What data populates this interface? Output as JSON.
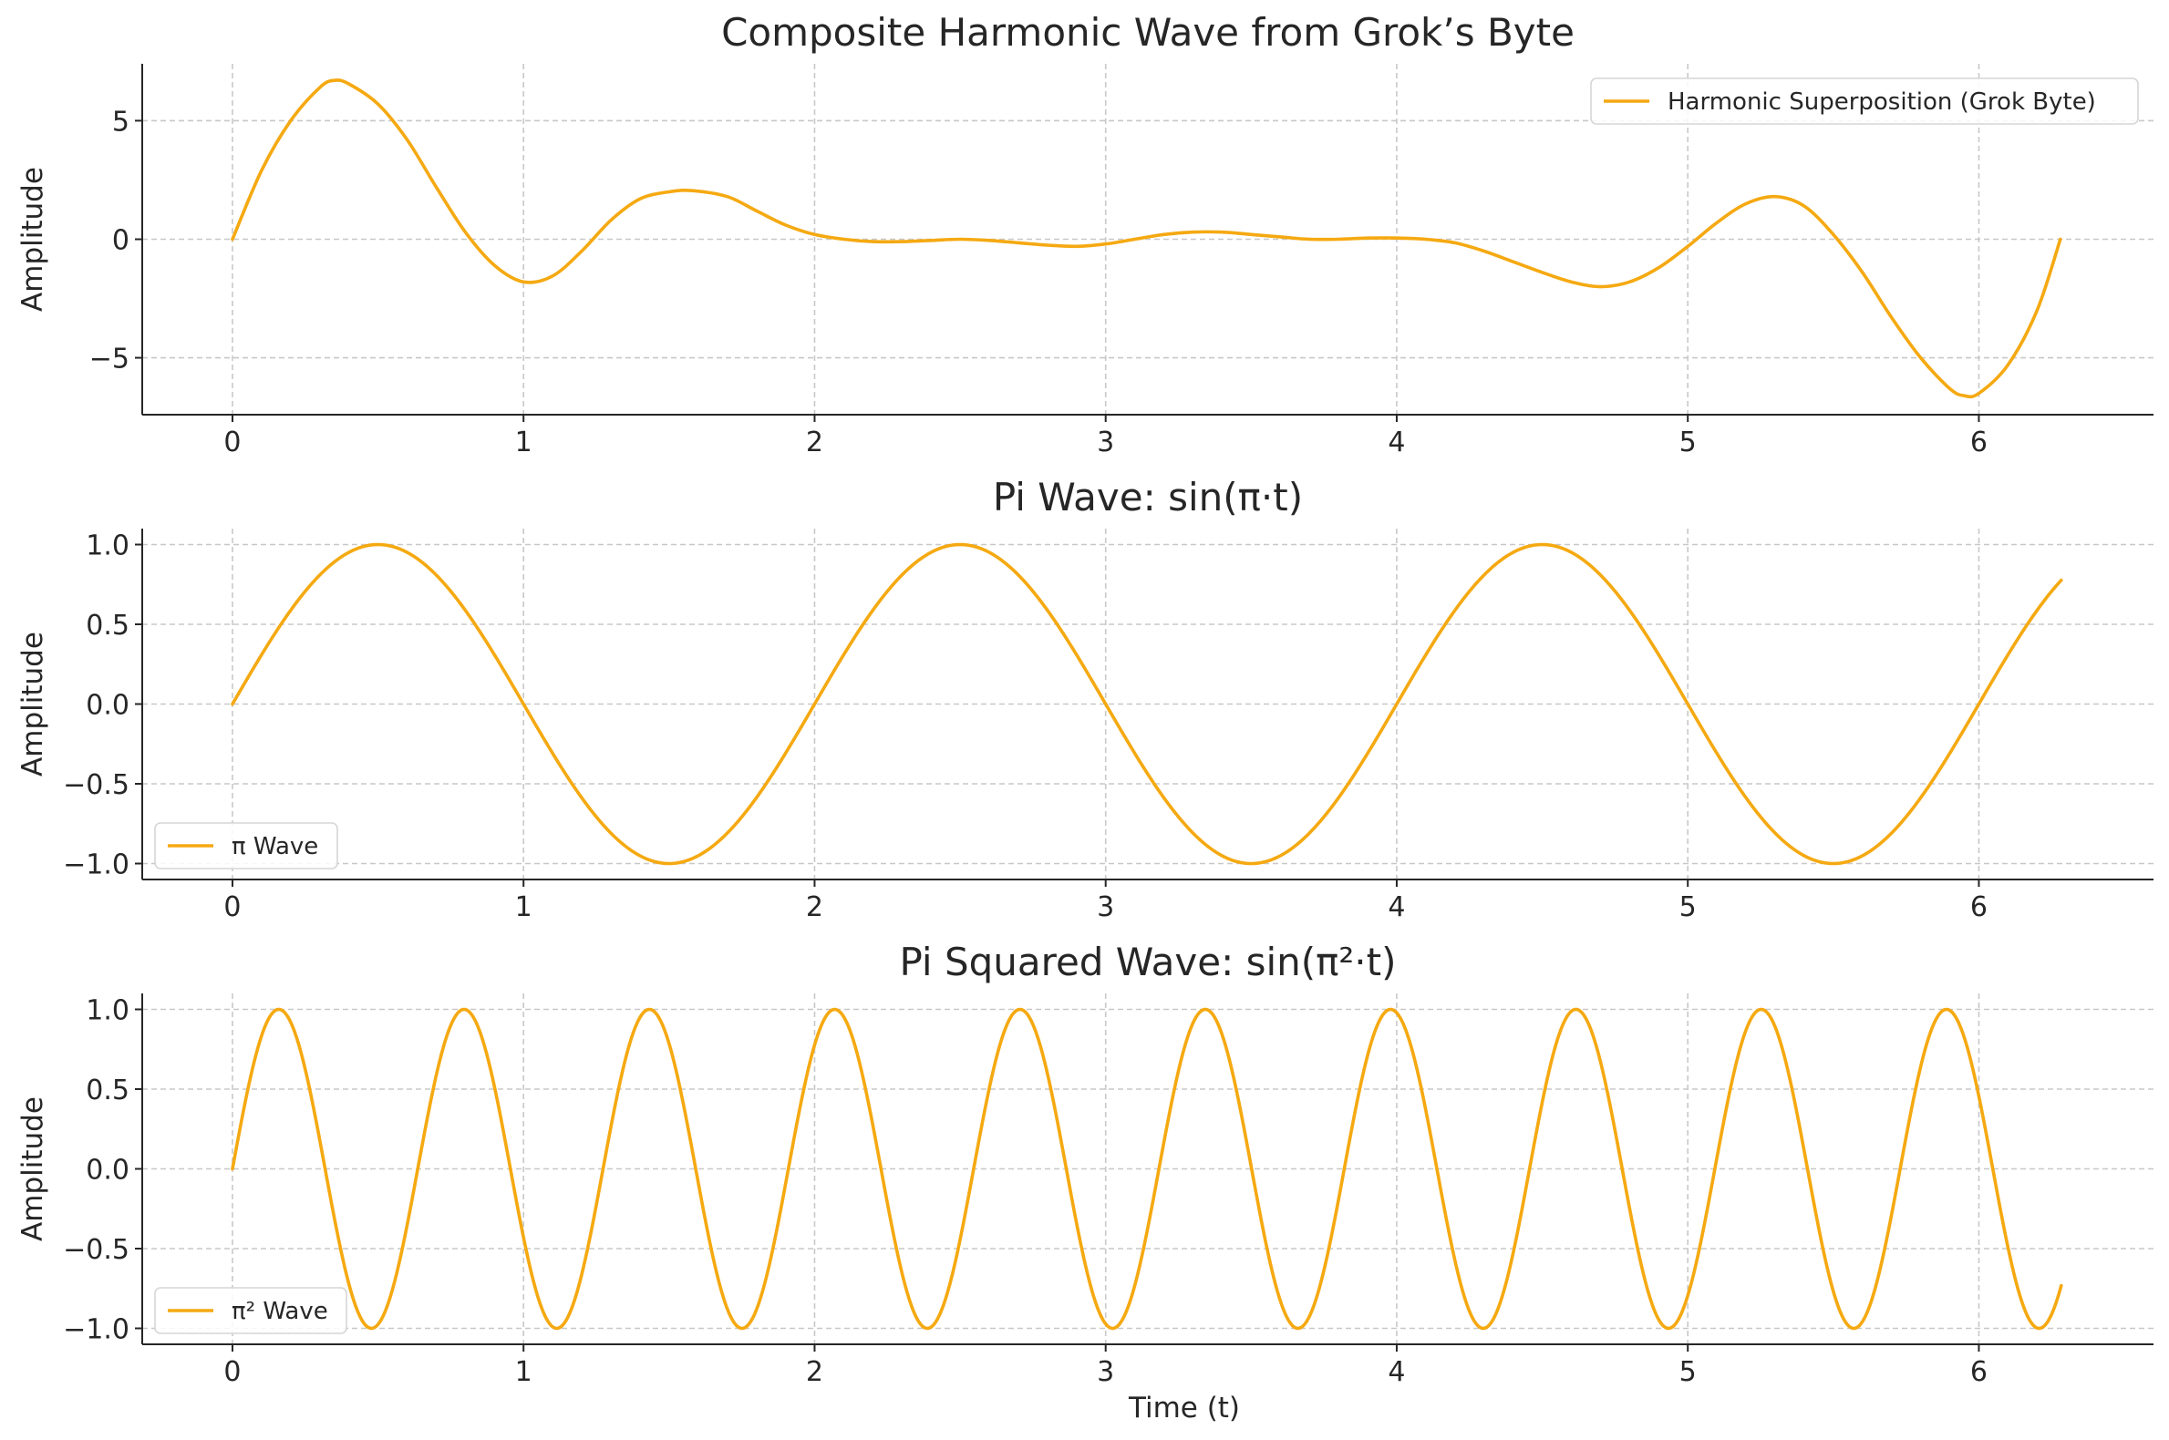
{
  "chart_data": [
    {
      "type": "line",
      "title": "Composite Harmonic Wave from Grok’s Byte",
      "xlabel": "",
      "ylabel": "Amplitude",
      "xlim": [
        -0.31,
        6.6
      ],
      "ylim": [
        -7.4,
        7.4
      ],
      "xticks": [
        0,
        1,
        2,
        3,
        4,
        5,
        6
      ],
      "yticks": [
        5,
        0,
        -5
      ],
      "ytick_labels": [
        "5",
        "0",
        "−5"
      ],
      "grid": true,
      "legend_position": "top-right",
      "series": [
        {
          "name": "Harmonic Superposition (Grok Byte)",
          "color": "#F5A911",
          "x": [
            0.0,
            0.1,
            0.2,
            0.3,
            0.35,
            0.4,
            0.5,
            0.6,
            0.7,
            0.8,
            0.9,
            1.0,
            1.1,
            1.2,
            1.3,
            1.4,
            1.5,
            1.58,
            1.7,
            1.8,
            1.9,
            2.0,
            2.1,
            2.2,
            2.3,
            2.4,
            2.5,
            2.6,
            2.7,
            2.8,
            2.9,
            3.0,
            3.1,
            3.2,
            3.3,
            3.4,
            3.5,
            3.6,
            3.7,
            3.8,
            3.9,
            4.0,
            4.1,
            4.2,
            4.3,
            4.4,
            4.5,
            4.6,
            4.7,
            4.8,
            4.9,
            5.0,
            5.1,
            5.2,
            5.3,
            5.4,
            5.5,
            5.6,
            5.7,
            5.8,
            5.9,
            5.95,
            6.0,
            6.1,
            6.2,
            6.28
          ],
          "y": [
            0.0,
            2.9,
            5.0,
            6.4,
            6.7,
            6.55,
            5.7,
            4.2,
            2.2,
            0.3,
            -1.1,
            -1.8,
            -1.55,
            -0.5,
            0.8,
            1.7,
            2.0,
            2.05,
            1.8,
            1.2,
            0.6,
            0.2,
            0.0,
            -0.1,
            -0.1,
            -0.05,
            0.0,
            -0.05,
            -0.15,
            -0.25,
            -0.3,
            -0.2,
            0.0,
            0.2,
            0.3,
            0.3,
            0.2,
            0.1,
            0.0,
            0.0,
            0.05,
            0.05,
            0.0,
            -0.15,
            -0.5,
            -0.95,
            -1.4,
            -1.8,
            -2.0,
            -1.8,
            -1.2,
            -0.3,
            0.7,
            1.5,
            1.8,
            1.4,
            0.2,
            -1.4,
            -3.3,
            -5.0,
            -6.3,
            -6.6,
            -6.5,
            -5.3,
            -3.0,
            0.0
          ]
        }
      ]
    },
    {
      "type": "line",
      "title": "Pi Wave: sin(π·t)",
      "xlabel": "",
      "ylabel": "Amplitude",
      "xlim": [
        -0.31,
        6.6
      ],
      "ylim": [
        -1.1,
        1.1
      ],
      "xticks": [
        0,
        1,
        2,
        3,
        4,
        5,
        6
      ],
      "yticks": [
        1.0,
        0.5,
        0.0,
        -0.5,
        -1.0
      ],
      "ytick_labels": [
        "1.0",
        "0.5",
        "0.0",
        "−0.5",
        "−1.0"
      ],
      "grid": true,
      "legend_position": "bottom-left",
      "series": [
        {
          "name": "π Wave",
          "color": "#F5A911",
          "function": "sin(π·t)",
          "t_range": [
            0,
            6.283
          ]
        }
      ]
    },
    {
      "type": "line",
      "title": "Pi Squared Wave: sin(π²·t)",
      "xlabel": "Time (t)",
      "ylabel": "Amplitude",
      "xlim": [
        -0.31,
        6.6
      ],
      "ylim": [
        -1.1,
        1.1
      ],
      "xticks": [
        0,
        1,
        2,
        3,
        4,
        5,
        6
      ],
      "yticks": [
        1.0,
        0.5,
        0.0,
        -0.5,
        -1.0
      ],
      "ytick_labels": [
        "1.0",
        "0.5",
        "0.0",
        "−0.5",
        "−1.0"
      ],
      "grid": true,
      "legend_position": "bottom-left",
      "series": [
        {
          "name": "π² Wave",
          "color": "#F5A911",
          "function": "sin(π²·t)",
          "t_range": [
            0,
            6.283
          ]
        }
      ]
    }
  ]
}
